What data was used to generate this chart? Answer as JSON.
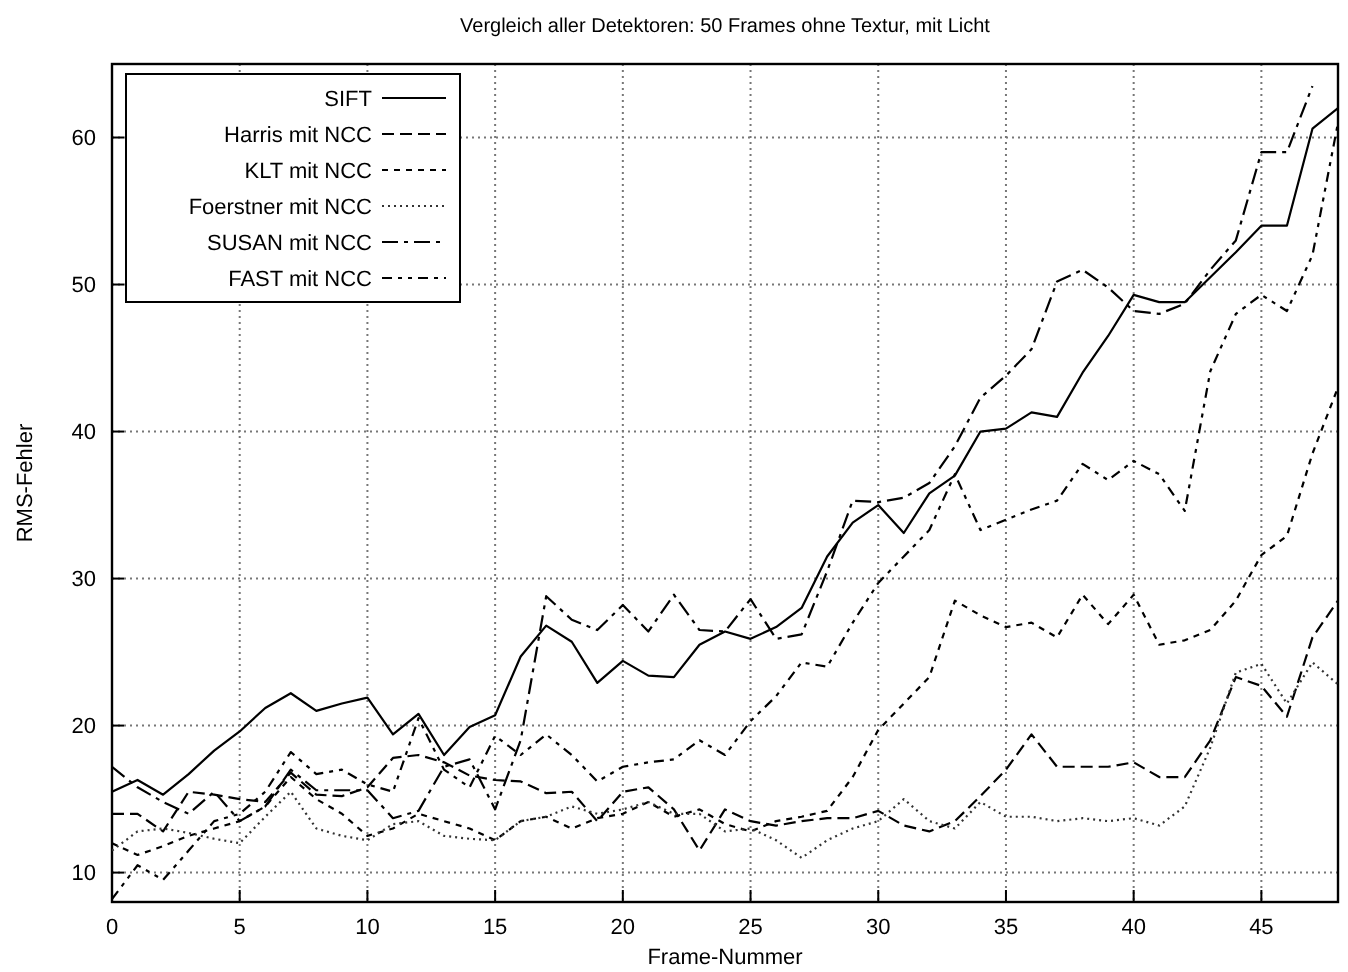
{
  "chart_data": {
    "type": "line",
    "title": "Vergleich aller Detektoren: 50 Frames ohne Textur, mit Licht",
    "xlabel": "Frame-Nummer",
    "ylabel": "RMS-Fehler",
    "x": [
      0,
      1,
      2,
      3,
      4,
      5,
      6,
      7,
      8,
      9,
      10,
      11,
      12,
      13,
      14,
      15,
      16,
      17,
      18,
      19,
      20,
      21,
      22,
      23,
      24,
      25,
      26,
      27,
      28,
      29,
      30,
      31,
      32,
      33,
      34,
      35,
      36,
      37,
      38,
      39,
      40,
      41,
      42,
      43,
      44,
      45,
      46,
      47,
      48
    ],
    "xlim": [
      0,
      48
    ],
    "ylim": [
      8,
      65
    ],
    "xticks": [
      0,
      5,
      10,
      15,
      20,
      25,
      30,
      35,
      40,
      45
    ],
    "yticks": [
      10,
      20,
      30,
      40,
      50,
      60
    ],
    "grid": true,
    "legend": "top left",
    "marker": "none",
    "series": [
      {
        "name": "SIFT",
        "color": "#000000",
        "line_style": "solid",
        "values": [
          15.5,
          16.3,
          15.3,
          16.7,
          18.3,
          19.6,
          21.2,
          22.2,
          21,
          21.5,
          21.9,
          19.4,
          20.8,
          18,
          19.9,
          20.7,
          24.7,
          26.8,
          25.7,
          22.9,
          24.4,
          23.4,
          23.3,
          25.5,
          26.4,
          25.9,
          26.7,
          28,
          31.5,
          33.8,
          35,
          33.1,
          35.8,
          37,
          40,
          40.2,
          41.3,
          41,
          44,
          46.5,
          49.3,
          48.8,
          48.8,
          50.5,
          52.2,
          54,
          54,
          60.6,
          62
        ]
      },
      {
        "name": "Harris mit NCC",
        "color": "#000000",
        "line_style": "dashed",
        "values": [
          14,
          14,
          12.8,
          15.5,
          15.3,
          15,
          14.8,
          16.8,
          15.3,
          15.2,
          15.8,
          17.8,
          18,
          17.5,
          16.6,
          16.3,
          16.2,
          15.4,
          15.5,
          13.5,
          15.5,
          15.8,
          14.3,
          11.5,
          14.3,
          13.5,
          13.2,
          13.5,
          13.7,
          13.7,
          14.2,
          13.2,
          12.8,
          13.5,
          15.2,
          17,
          19.4,
          17.2,
          17.2,
          17.2,
          17.5,
          16.5,
          16.5,
          19,
          23.3,
          22.7,
          20.6,
          26,
          28.5
        ]
      },
      {
        "name": "KLT mit NCC",
        "color": "#000000",
        "line_style": "short-dashed",
        "values": [
          12,
          11.2,
          11.8,
          12.5,
          13,
          13.5,
          14.5,
          16.5,
          15,
          14,
          12.5,
          13,
          14,
          13.5,
          13,
          12.2,
          13.5,
          13.8,
          13,
          13.7,
          14,
          14.8,
          13.8,
          14.3,
          13.3,
          12.8,
          13.5,
          13.8,
          14.2,
          16.5,
          19.7,
          21.5,
          23.3,
          28.5,
          27.5,
          26.7,
          27,
          26,
          28.9,
          26.9,
          28.9,
          25.5,
          25.8,
          26.5,
          28.5,
          31.6,
          32.9,
          38.5,
          43
        ]
      },
      {
        "name": "Foerstner mit NCC",
        "color": "#333333",
        "line_style": "dotted",
        "values": [
          11.5,
          12.8,
          13,
          12.7,
          12.3,
          12,
          13.8,
          15.5,
          13,
          12.5,
          12.2,
          13.3,
          13.5,
          12.5,
          12.3,
          12.2,
          13.5,
          13.8,
          14.5,
          14,
          14.3,
          14.8,
          14,
          14,
          12.8,
          13,
          12.2,
          11,
          12.2,
          13,
          13.5,
          15,
          13.5,
          13,
          14.8,
          13.8,
          13.8,
          13.5,
          13.7,
          13.5,
          13.7,
          13.2,
          14.5,
          18.5,
          23.6,
          24.2,
          21.5,
          24.3,
          22.8
        ]
      },
      {
        "name": "SUSAN mit NCC",
        "color": "#000000",
        "line_style": "dashdot",
        "values": [
          17.2,
          15.8,
          14.8,
          14,
          15.5,
          13.5,
          14.5,
          17,
          15.6,
          15.6,
          15.6,
          13.7,
          14.2,
          17.2,
          17.7,
          14.3,
          19,
          28.8,
          27.2,
          26.5,
          28.2,
          26.4,
          28.9,
          26.5,
          26.4,
          28.6,
          25.9,
          26.2,
          30.5,
          35.3,
          35.2,
          35.5,
          36.5,
          39,
          42.3,
          43.8,
          45.6,
          50.2,
          51,
          49.8,
          48.2,
          48,
          48.7,
          51,
          53,
          59,
          59,
          63.5,
          null
        ]
      },
      {
        "name": "FAST mit NCC",
        "color": "#000000",
        "line_style": "dashdotdot",
        "values": [
          8.2,
          10.5,
          9.5,
          11.5,
          13.5,
          14,
          15.5,
          18.2,
          16.7,
          17,
          16,
          15.5,
          20.5,
          17,
          15.8,
          19.3,
          18,
          19.4,
          18,
          16.2,
          17.2,
          17.5,
          17.7,
          19,
          18,
          20.3,
          22,
          24.3,
          24,
          27,
          29.7,
          31.5,
          33.3,
          37.1,
          33.3,
          34,
          34.7,
          35.3,
          37.8,
          36.7,
          38,
          37.1,
          34.6,
          44.1,
          48,
          49.3,
          48.2,
          52,
          61
        ]
      }
    ]
  }
}
